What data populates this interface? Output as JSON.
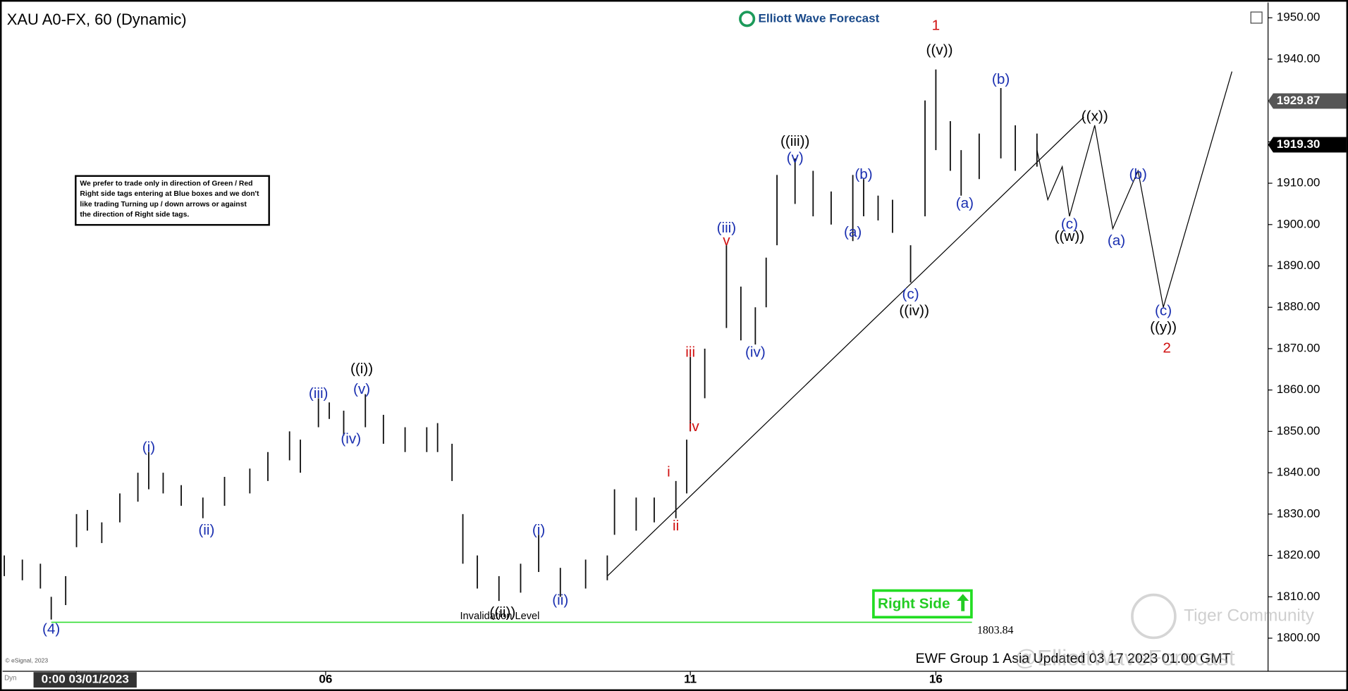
{
  "chart_data": {
    "type": "ohlc",
    "title": "XAU A0-FX, 60 (Dynamic)",
    "logo": "Elliott Wave Forecast",
    "note": [
      "We prefer to trade only in direction of Green / Red",
      "Right side tags entering at Blue boxes and we don't",
      "like trading Turning up / down arrows or against",
      "the direction of Right side tags."
    ],
    "right_side": "Right Side",
    "footer": "EWF Group 1 Asia Updated 03 17 2023 01.00 GMT",
    "watermark": "@ElliottWaveForecast",
    "community": "Tiger Community",
    "copyright": "© eSignal, 2023",
    "axis_mode": "Dyn",
    "color": "#111111",
    "x": [
      0,
      5,
      10,
      13,
      17,
      20,
      23,
      27,
      32,
      37,
      40,
      44,
      49,
      55,
      61,
      68,
      73,
      79,
      82,
      87,
      90,
      94,
      100,
      105,
      111,
      117,
      120,
      124,
      127,
      131,
      137,
      143,
      148,
      154,
      161,
      167,
      169,
      175,
      180,
      186,
      189,
      190,
      194,
      200,
      204,
      208,
      211,
      214,
      219,
      224,
      229,
      235,
      238,
      242,
      246,
      251,
      255,
      258,
      262,
      265,
      270,
      276,
      280,
      286
    ],
    "high": [
      1820,
      1819,
      1818,
      1810,
      1815,
      1830,
      1831,
      1828,
      1835,
      1840,
      1845,
      1840,
      1837,
      1834,
      1839,
      1841,
      1845,
      1850,
      1848,
      1858,
      1857,
      1855,
      1859,
      1854,
      1851,
      1851,
      1852,
      1847,
      1830,
      1820,
      1815,
      1818,
      1825,
      1817,
      1819,
      1820,
      1836,
      1834,
      1834,
      1838,
      1848,
      1868,
      1870,
      1895,
      1885,
      1880,
      1892,
      1912,
      1916,
      1913,
      1908,
      1912,
      1911,
      1907,
      1906,
      1895,
      1930,
      1937.5,
      1925,
      1918,
      1922,
      1933,
      1924,
      1922
    ],
    "low": [
      1815,
      1814,
      1812,
      1804.5,
      1808,
      1822,
      1826,
      1823,
      1828,
      1833,
      1836,
      1835,
      1832,
      1829,
      1832,
      1835,
      1838,
      1843,
      1840,
      1851,
      1853,
      1849,
      1851,
      1847,
      1845,
      1845,
      1845,
      1838,
      1818,
      1812,
      1809,
      1811,
      1816,
      1810,
      1812,
      1814,
      1825,
      1826,
      1828,
      1829,
      1835,
      1850,
      1858,
      1875,
      1872,
      1871,
      1880,
      1895,
      1905,
      1902,
      1900,
      1896,
      1902,
      1901,
      1898,
      1886,
      1902,
      1918,
      1913,
      1907,
      1911,
      1916,
      1913,
      1914
    ],
    "projection": {
      "x": [
        286,
        289,
        293,
        295,
        302,
        307,
        314,
        321,
        340
      ],
      "values": [
        1918,
        1906,
        1914,
        1902,
        1924,
        1899,
        1913,
        1880,
        1937
      ]
    },
    "trendline": {
      "x": [
        167,
        299
      ],
      "values": [
        1815,
        1926
      ]
    },
    "invalidation": {
      "label": "Invalidation Level",
      "value": 1803.84,
      "x": [
        13,
        268
      ]
    },
    "price_tags": [
      {
        "value": 1929.87,
        "label": "1929.87",
        "color": "#555555"
      },
      {
        "value": 1919.3,
        "label": "1919.30",
        "color": "#000000"
      }
    ],
    "labels": [
      {
        "text": "(4)",
        "x": 13,
        "y": 1802,
        "color": "#1a2fb0"
      },
      {
        "text": "(i)",
        "x": 40,
        "y": 1846,
        "color": "#1a2fb0"
      },
      {
        "text": "(ii)",
        "x": 56,
        "y": 1826,
        "color": "#1a2fb0"
      },
      {
        "text": "(iii)",
        "x": 87,
        "y": 1859,
        "color": "#1a2fb0"
      },
      {
        "text": "(iv)",
        "x": 96,
        "y": 1848,
        "color": "#1a2fb0"
      },
      {
        "text": "(v)",
        "x": 99,
        "y": 1860,
        "color": "#1a2fb0"
      },
      {
        "text": "((i))",
        "x": 99,
        "y": 1865,
        "color": "#000000"
      },
      {
        "text": "((ii))",
        "x": 138,
        "y": 1806,
        "color": "#000000"
      },
      {
        "text": "(i)",
        "x": 148,
        "y": 1826,
        "color": "#1a2fb0"
      },
      {
        "text": "(ii)",
        "x": 154,
        "y": 1809,
        "color": "#1a2fb0"
      },
      {
        "text": "i",
        "x": 184,
        "y": 1840,
        "color": "#d01010"
      },
      {
        "text": "ii",
        "x": 186,
        "y": 1827,
        "color": "#d01010"
      },
      {
        "text": "iii",
        "x": 190,
        "y": 1869,
        "color": "#d01010"
      },
      {
        "text": "iv",
        "x": 191,
        "y": 1851,
        "color": "#d01010"
      },
      {
        "text": "v",
        "x": 200,
        "y": 1896,
        "color": "#d01010"
      },
      {
        "text": "(iii)",
        "x": 200,
        "y": 1899,
        "color": "#1a2fb0"
      },
      {
        "text": "(iv)",
        "x": 208,
        "y": 1869,
        "color": "#1a2fb0"
      },
      {
        "text": "(v)",
        "x": 219,
        "y": 1916,
        "color": "#1a2fb0"
      },
      {
        "text": "((iii))",
        "x": 219,
        "y": 1920,
        "color": "#000000"
      },
      {
        "text": "(a)",
        "x": 235,
        "y": 1898,
        "color": "#1a2fb0"
      },
      {
        "text": "(b)",
        "x": 238,
        "y": 1912,
        "color": "#1a2fb0"
      },
      {
        "text": "(c)",
        "x": 251,
        "y": 1883,
        "color": "#1a2fb0"
      },
      {
        "text": "((iv))",
        "x": 252,
        "y": 1879,
        "color": "#000000"
      },
      {
        "text": "((v))",
        "x": 259,
        "y": 1942,
        "color": "#000000"
      },
      {
        "text": "1",
        "x": 258,
        "y": 1948,
        "color": "#d01010"
      },
      {
        "text": "(a)",
        "x": 266,
        "y": 1905,
        "color": "#1a2fb0"
      },
      {
        "text": "(b)",
        "x": 276,
        "y": 1935,
        "color": "#1a2fb0"
      },
      {
        "text": "(c)",
        "x": 295,
        "y": 1900,
        "color": "#1a2fb0"
      },
      {
        "text": "((w))",
        "x": 295,
        "y": 1897,
        "color": "#000000"
      },
      {
        "text": "((x))",
        "x": 302,
        "y": 1926,
        "color": "#000000"
      },
      {
        "text": "(a)",
        "x": 308,
        "y": 1896,
        "color": "#1a2fb0"
      },
      {
        "text": "(b)",
        "x": 314,
        "y": 1912,
        "color": "#1a2fb0"
      },
      {
        "text": "(c)",
        "x": 321,
        "y": 1879,
        "color": "#1a2fb0"
      },
      {
        "text": "((y))",
        "x": 321,
        "y": 1875,
        "color": "#000000"
      },
      {
        "text": "2",
        "x": 322,
        "y": 1870,
        "color": "#d01010"
      }
    ],
    "xlim": [
      0,
      350
    ],
    "xticks": [
      {
        "value": 20,
        "label": "0:00 03/01/2023"
      },
      {
        "value": 89,
        "label": "06"
      },
      {
        "value": 190,
        "label": "11"
      },
      {
        "value": 258,
        "label": "16"
      }
    ],
    "ylim": [
      1792,
      1951
    ],
    "yticks": [
      {
        "value": 1800,
        "label": "1800.00"
      },
      {
        "value": 1810,
        "label": "1810.00"
      },
      {
        "value": 1820,
        "label": "1820.00"
      },
      {
        "value": 1830,
        "label": "1830.00"
      },
      {
        "value": 1840,
        "label": "1840.00"
      },
      {
        "value": 1850,
        "label": "1850.00"
      },
      {
        "value": 1860,
        "label": "1860.00"
      },
      {
        "value": 1870,
        "label": "1870.00"
      },
      {
        "value": 1880,
        "label": "1880.00"
      },
      {
        "value": 1890,
        "label": "1890.00"
      },
      {
        "value": 1900,
        "label": "1900.00"
      },
      {
        "value": 1910,
        "label": "1910.00"
      },
      {
        "value": 1920,
        "label": "1920.00"
      },
      {
        "value": 1930,
        "label": "1930.00"
      },
      {
        "value": 1940,
        "label": "1940.00"
      },
      {
        "value": 1950,
        "label": "1950.00"
      }
    ]
  }
}
